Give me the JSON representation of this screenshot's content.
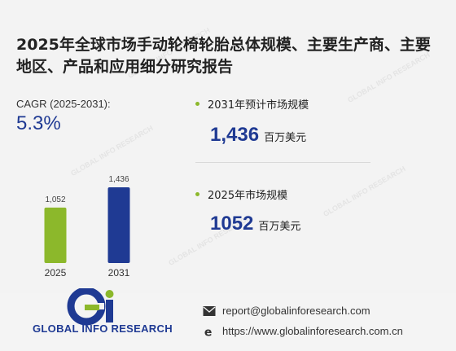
{
  "title": "2025年全球市场手动轮椅轮胎总体规模、主要生产商、主要地区、产品和应用细分研究报告",
  "cagr": {
    "label": "CAGR (2025-2031):",
    "value": "5.3%"
  },
  "chart_data": {
    "type": "bar",
    "categories": [
      "2025",
      "2031"
    ],
    "values": [
      1052,
      1436
    ],
    "value_labels": [
      "1,052",
      "1,436"
    ],
    "colors": [
      "#8cb82b",
      "#1f3a93"
    ],
    "title": "",
    "xlabel": "",
    "ylabel": ""
  },
  "stats": [
    {
      "label": "2031年预计市场规模",
      "value": "1,436",
      "unit": "百万美元"
    },
    {
      "label": "2025年市场规模",
      "value": "1052",
      "unit": "百万美元"
    }
  ],
  "brand": {
    "logo_text": "GLOBAL INFO RESEARCH",
    "primary_color": "#1f3a93",
    "accent_color": "#8cb82b"
  },
  "contact": {
    "email": "report@globalinforesearch.com",
    "website": "https://www.globalinforesearch.com.cn",
    "email_icon": "envelope-icon",
    "website_icon": "browser-e-icon"
  }
}
